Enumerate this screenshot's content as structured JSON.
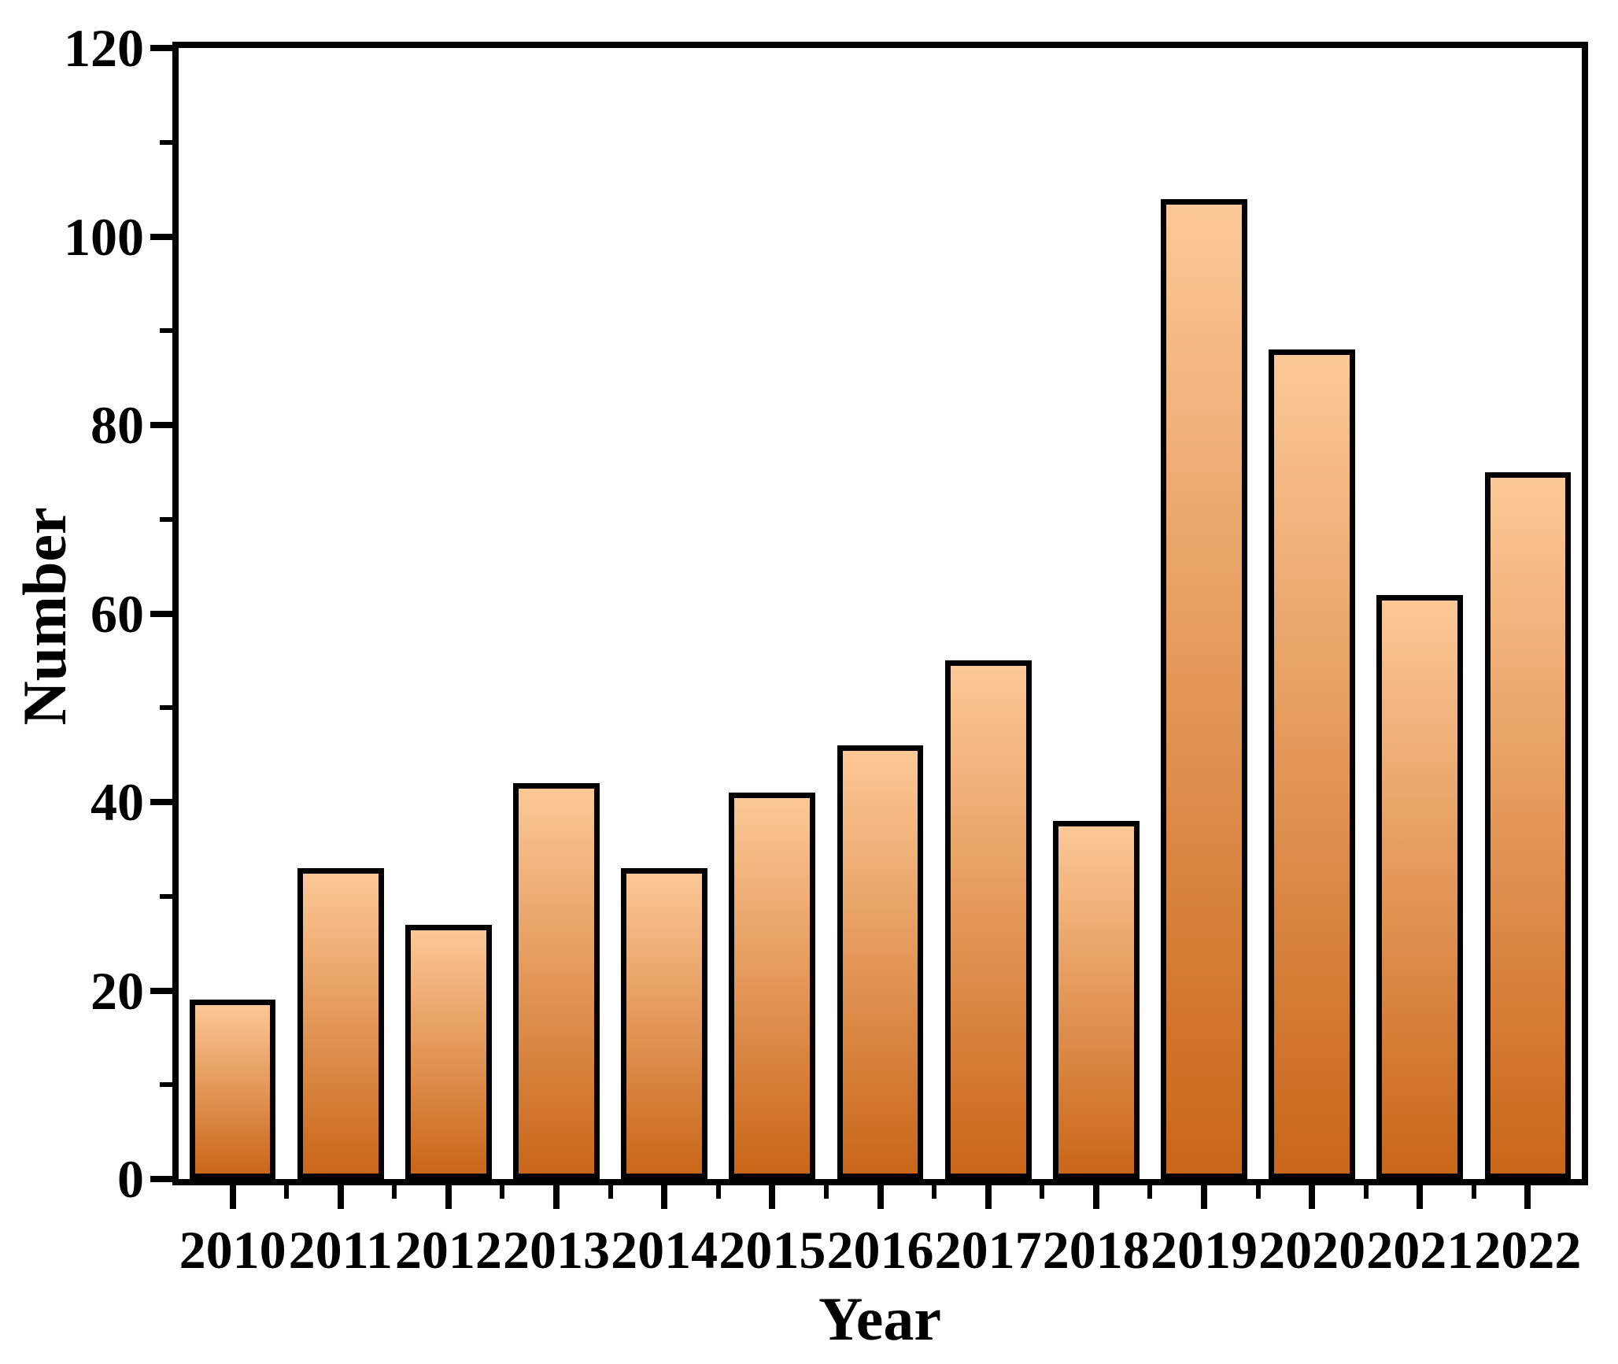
{
  "chart_data": {
    "type": "bar",
    "title": "",
    "xlabel": "Year",
    "ylabel": "Number",
    "categories": [
      "2010",
      "2011",
      "2012",
      "2013",
      "2014",
      "2015",
      "2016",
      "2017",
      "2018",
      "2019",
      "2020",
      "2021",
      "2022"
    ],
    "values": [
      19,
      33,
      27,
      42,
      33,
      41,
      46,
      55,
      38,
      104,
      88,
      62,
      75
    ],
    "ylim": [
      0,
      120
    ],
    "yticks": [
      0,
      20,
      40,
      60,
      80,
      100,
      120
    ],
    "ytick_minor_interval": 10,
    "grid": false,
    "legend": null,
    "bar_style": {
      "gradient_top": "#fcc896",
      "gradient_bottom": "#c96618",
      "border_color": "#000000",
      "bar_width_fraction": 0.8
    },
    "axis_color": "#000000",
    "background_color": "#ffffff"
  }
}
